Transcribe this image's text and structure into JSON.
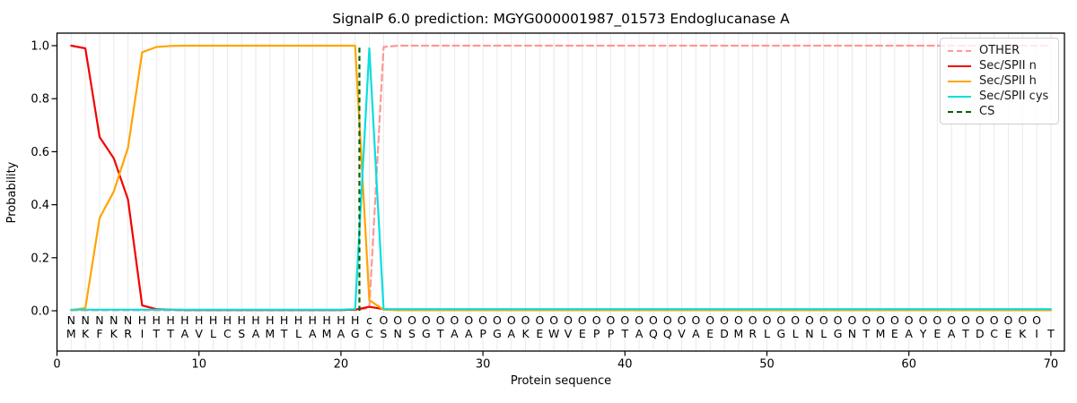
{
  "title": "SignalP 6.0 prediction: MGYG000001987_01573 Endoglucanase A",
  "axes": {
    "xlabel": "Protein sequence",
    "ylabel": "Probability",
    "xticks": [
      0,
      10,
      20,
      30,
      40,
      50,
      60,
      70
    ],
    "yticks": [
      0.0,
      0.2,
      0.4,
      0.6,
      0.8,
      1.0
    ],
    "grid": "vertical-per-residue",
    "grid_color": "#e9e9e9"
  },
  "legend": {
    "position": "upper-right",
    "items": [
      {
        "id": "other",
        "label": "OTHER",
        "color": "#ff9896",
        "dashed": true
      },
      {
        "id": "n",
        "label": "Sec/SPII n",
        "color": "#f40000",
        "dashed": false
      },
      {
        "id": "h",
        "label": "Sec/SPII h",
        "color": "#ffa502",
        "dashed": false
      },
      {
        "id": "cys",
        "label": "Sec/SPII cys",
        "color": "#0adede",
        "dashed": false
      },
      {
        "id": "cs",
        "label": "CS",
        "color": "#006400",
        "dashed": true
      }
    ]
  },
  "annotation": {
    "sequence": "MKFKRITTAVLCSAMTLAMAGCSNSGTAAPGAKEWVEPPTAQQVAEDMRLGLNLGNTMEAYEATDCEKIT",
    "states": "NNNNNHHHHHHHHHHHHHHHHcOOOOOOOOOOOOOOOOOOOOOOOOOOOOOOOOOOOOOOOOOOOOOOO",
    "state_colors": {
      "N": "#f40000",
      "H": "#ffa502",
      "c": "#0adede",
      "O": "#808080"
    },
    "sequence_color": "#212121"
  },
  "chart_data": {
    "type": "line",
    "x_positions": "1-70 (one point per residue)",
    "xlim": [
      0,
      70.95
    ],
    "ylim": [
      -0.15,
      1.05
    ],
    "title": "SignalP 6.0 prediction: MGYG000001987_01573 Endoglucanase A",
    "xlabel": "Protein sequence",
    "ylabel": "Probability",
    "cs_position": 21.3,
    "series": [
      {
        "id": "other",
        "name": "OTHER",
        "color": "#ff9896",
        "dash": true,
        "values": [
          0.002,
          0.002,
          0.002,
          0.002,
          0.002,
          0.002,
          0.002,
          0.002,
          0.002,
          0.002,
          0.002,
          0.002,
          0.002,
          0.002,
          0.002,
          0.002,
          0.002,
          0.002,
          0.002,
          0.002,
          0.003,
          0.01,
          0.995,
          1.0,
          1.0,
          1.0,
          1.0,
          1.0,
          1.0,
          1.0,
          1.0,
          1.0,
          1.0,
          1.0,
          1.0,
          1.0,
          1.0,
          1.0,
          1.0,
          1.0,
          1.0,
          1.0,
          1.0,
          1.0,
          1.0,
          1.0,
          1.0,
          1.0,
          1.0,
          1.0,
          1.0,
          1.0,
          1.0,
          1.0,
          1.0,
          1.0,
          1.0,
          1.0,
          1.0,
          1.0,
          1.0,
          1.0,
          1.0,
          1.0,
          1.0,
          1.0,
          1.0,
          1.0,
          1.0,
          1.0
        ]
      },
      {
        "id": "n",
        "name": "Sec/SPII n",
        "color": "#f40000",
        "dash": false,
        "values": [
          1.0,
          0.99,
          0.655,
          0.575,
          0.42,
          0.02,
          0.006,
          0.004,
          0.003,
          0.003,
          0.003,
          0.003,
          0.003,
          0.003,
          0.003,
          0.003,
          0.003,
          0.003,
          0.003,
          0.003,
          0.004,
          0.015,
          0.006,
          0.003,
          0.003,
          0.003,
          0.003,
          0.003,
          0.003,
          0.003,
          0.003,
          0.003,
          0.003,
          0.003,
          0.003,
          0.003,
          0.003,
          0.003,
          0.003,
          0.003,
          0.003,
          0.003,
          0.003,
          0.003,
          0.003,
          0.003,
          0.003,
          0.003,
          0.003,
          0.003,
          0.003,
          0.003,
          0.003,
          0.003,
          0.003,
          0.003,
          0.003,
          0.003,
          0.003,
          0.003,
          0.003,
          0.003,
          0.003,
          0.003,
          0.003,
          0.003,
          0.003,
          0.003,
          0.003,
          0.003
        ]
      },
      {
        "id": "h",
        "name": "Sec/SPII h",
        "color": "#ffa502",
        "dash": false,
        "values": [
          0.002,
          0.01,
          0.35,
          0.45,
          0.615,
          0.975,
          0.995,
          0.999,
          1.0,
          1.0,
          1.0,
          1.0,
          1.0,
          1.0,
          1.0,
          1.0,
          1.0,
          1.0,
          1.0,
          1.0,
          1.0,
          0.04,
          0.004,
          0.002,
          0.002,
          0.002,
          0.002,
          0.002,
          0.002,
          0.002,
          0.002,
          0.002,
          0.002,
          0.002,
          0.002,
          0.002,
          0.002,
          0.002,
          0.002,
          0.002,
          0.002,
          0.002,
          0.002,
          0.002,
          0.002,
          0.002,
          0.002,
          0.002,
          0.002,
          0.002,
          0.002,
          0.002,
          0.002,
          0.002,
          0.002,
          0.002,
          0.002,
          0.002,
          0.002,
          0.002,
          0.002,
          0.002,
          0.002,
          0.002,
          0.002,
          0.002,
          0.002,
          0.002,
          0.002,
          0.002
        ]
      },
      {
        "id": "cys",
        "name": "Sec/SPII cys",
        "color": "#0adede",
        "dash": false,
        "values": [
          0.004,
          0.004,
          0.004,
          0.004,
          0.004,
          0.004,
          0.004,
          0.004,
          0.004,
          0.004,
          0.004,
          0.004,
          0.004,
          0.004,
          0.004,
          0.004,
          0.004,
          0.004,
          0.004,
          0.004,
          0.006,
          0.99,
          0.006,
          0.006,
          0.006,
          0.006,
          0.006,
          0.006,
          0.006,
          0.006,
          0.006,
          0.006,
          0.006,
          0.006,
          0.006,
          0.006,
          0.006,
          0.006,
          0.006,
          0.006,
          0.006,
          0.006,
          0.006,
          0.006,
          0.006,
          0.006,
          0.006,
          0.006,
          0.006,
          0.006,
          0.006,
          0.006,
          0.006,
          0.006,
          0.006,
          0.006,
          0.006,
          0.006,
          0.006,
          0.006,
          0.006,
          0.006,
          0.006,
          0.006,
          0.006,
          0.006,
          0.006,
          0.006,
          0.006,
          0.006
        ]
      }
    ]
  }
}
